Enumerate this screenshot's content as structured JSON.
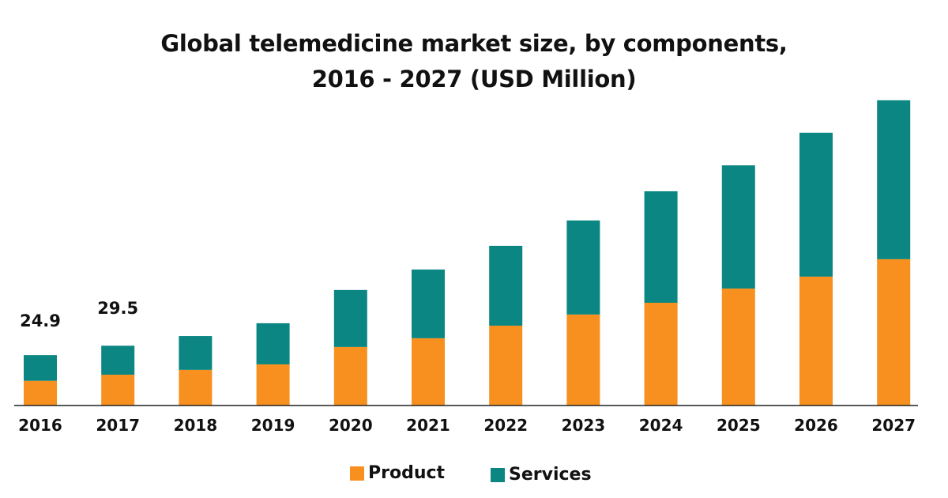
{
  "chart_data": {
    "type": "bar",
    "stacked": true,
    "title_lines": [
      "Global telemedicine market size, by components,",
      "2016 - 2027 (USD Million)"
    ],
    "xlabel": "",
    "ylabel": "",
    "ylim": [
      0,
      155
    ],
    "grid": false,
    "legend_position": "bottom",
    "categories": [
      "2016",
      "2017",
      "2018",
      "2019",
      "2020",
      "2021",
      "2022",
      "2023",
      "2024",
      "2025",
      "2026",
      "2027"
    ],
    "series": [
      {
        "name": "Product",
        "color": "#F7901E",
        "values": [
          12.2,
          15.2,
          17.6,
          20.3,
          28.9,
          33.2,
          39.4,
          44.9,
          50.7,
          57.7,
          63.6,
          72.2
        ]
      },
      {
        "name": "Services",
        "color": "#0B8682",
        "values": [
          12.7,
          14.3,
          16.7,
          20.3,
          28.1,
          33.9,
          39.4,
          46.4,
          55.0,
          60.8,
          71.0,
          78.4
        ]
      }
    ],
    "data_labels": [
      {
        "category": "2016",
        "text": "24.9"
      },
      {
        "category": "2017",
        "text": "29.5"
      }
    ]
  }
}
